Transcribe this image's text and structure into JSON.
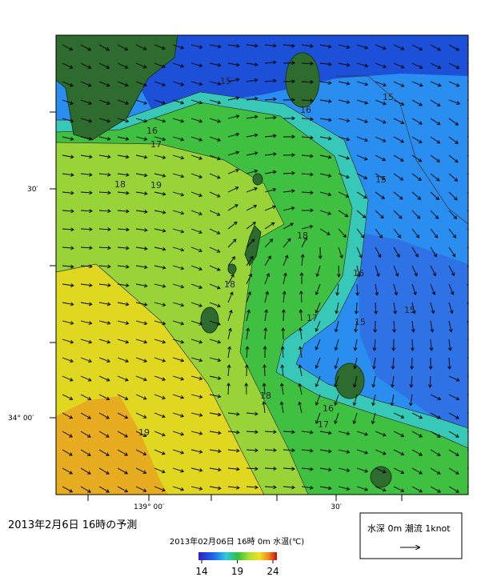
{
  "map": {
    "lat_labels": [
      "30′",
      "34° 00′"
    ],
    "lon_labels": [
      "139° 00′",
      "30′"
    ],
    "contour_labels": [
      "15",
      "16",
      "15",
      "16",
      "17",
      "18",
      "19",
      "15",
      "18",
      "18",
      "16",
      "15",
      "15",
      "17",
      "18",
      "16",
      "17",
      "19"
    ]
  },
  "caption": "2013年2月6日  16時の予測",
  "colorbar": {
    "title": "2013年02月06日 16時 0m 水温(℃)",
    "ticks": [
      14,
      19,
      24
    ]
  },
  "legend": "水深 0m  潮流  1knot"
}
